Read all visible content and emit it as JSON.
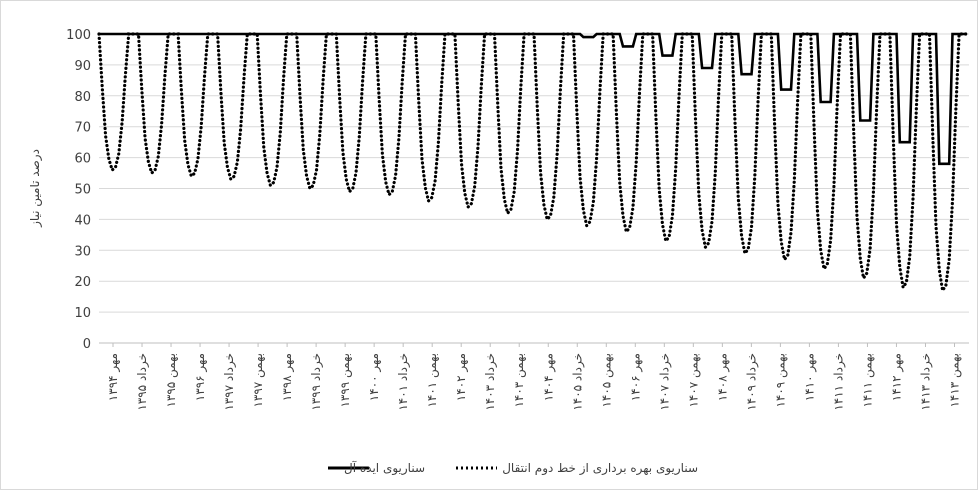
{
  "chart_data": {
    "type": "line",
    "title": "",
    "ylabel": "درصد تامین نیاز",
    "xlabel": "",
    "ylim": [
      0,
      100
    ],
    "yticks": [
      0,
      10,
      20,
      30,
      40,
      50,
      60,
      70,
      80,
      90,
      100
    ],
    "grid": true,
    "legend_position": "bottom",
    "x_tick_labels": [
      "مهر ۱۳۹۴",
      "خرداد ۱۳۹۵",
      "بهمن ۱۳۹۵",
      "مهر ۱۳۹۶",
      "خرداد ۱۳۹۷",
      "بهمن ۱۳۹۷",
      "مهر ۱۳۹۸",
      "خرداد ۱۳۹۹",
      "بهمن ۱۳۹۹",
      "مهر ۱۴۰۰",
      "خرداد ۱۴۰۱",
      "بهمن ۱۴۰۱",
      "مهر ۱۴۰۲",
      "خرداد ۱۴۰۳",
      "بهمن ۱۴۰۳",
      "مهر ۱۴۰۴",
      "خرداد ۱۴۰۵",
      "بهمن ۱۴۰۵",
      "مهر ۱۴۰۶",
      "خرداد ۱۴۰۷",
      "بهمن ۱۴۰۷",
      "مهر ۱۴۰۸",
      "خرداد ۱۴۰۹",
      "بهمن ۱۴۰۹",
      "مهر ۱۴۱۰",
      "خرداد ۱۴۱۱",
      "بهمن ۱۴۱۱",
      "مهر ۱۴۱۲",
      "خرداد ۱۴۱۳",
      "بهمن ۱۴۱۳"
    ],
    "series": [
      {
        "name": "سناریوی ایده آل",
        "style": "solid",
        "color": "#000000",
        "trough_minimums": [
          100,
          100,
          100,
          100,
          100,
          100,
          100,
          100,
          100,
          100,
          100,
          100,
          100,
          100,
          99,
          96,
          93,
          89,
          87,
          82,
          78,
          72,
          65,
          58
        ]
      },
      {
        "name": "سناریوی بهره برداری از خط دوم انتقال",
        "style": "dotted",
        "color": "#000000",
        "trough_minimums": [
          56,
          55,
          54,
          53,
          51,
          50,
          49,
          48,
          46,
          44,
          42,
          40,
          38,
          36,
          33,
          31,
          29,
          27,
          24,
          21,
          18,
          17
        ]
      }
    ],
    "period_months": 12,
    "notes_visible": false
  },
  "legend": {
    "ideal_label": "سناریوی ایده آل",
    "second_line_label": "سناریوی بهره برداری از خط دوم انتقال"
  }
}
